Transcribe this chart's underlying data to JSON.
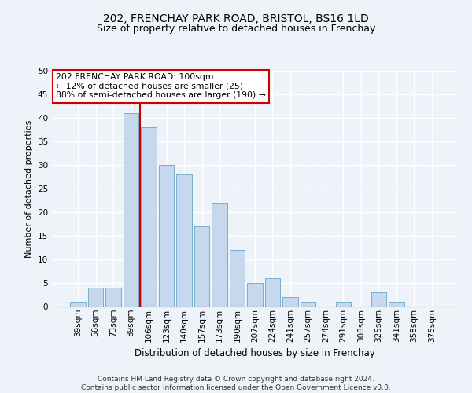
{
  "title1": "202, FRENCHAY PARK ROAD, BRISTOL, BS16 1LD",
  "title2": "Size of property relative to detached houses in Frenchay",
  "xlabel": "Distribution of detached houses by size in Frenchay",
  "ylabel": "Number of detached properties",
  "categories": [
    "39sqm",
    "56sqm",
    "73sqm",
    "89sqm",
    "106sqm",
    "123sqm",
    "140sqm",
    "157sqm",
    "173sqm",
    "190sqm",
    "207sqm",
    "224sqm",
    "241sqm",
    "257sqm",
    "274sqm",
    "291sqm",
    "308sqm",
    "325sqm",
    "341sqm",
    "358sqm",
    "375sqm"
  ],
  "values": [
    1,
    4,
    4,
    41,
    38,
    30,
    28,
    17,
    22,
    12,
    5,
    6,
    2,
    1,
    0,
    1,
    0,
    3,
    1,
    0,
    0
  ],
  "bar_color": "#c5d8ee",
  "bar_edge_color": "#7aaecc",
  "vline_x_index": 3.5,
  "vline_color": "#cc0000",
  "annotation_text": "202 FRENCHAY PARK ROAD: 100sqm\n← 12% of detached houses are smaller (25)\n88% of semi-detached houses are larger (190) →",
  "annotation_box_facecolor": "#ffffff",
  "annotation_box_edgecolor": "#cc0000",
  "ylim": [
    0,
    50
  ],
  "yticks": [
    0,
    5,
    10,
    15,
    20,
    25,
    30,
    35,
    40,
    45,
    50
  ],
  "footnote": "Contains HM Land Registry data © Crown copyright and database right 2024.\nContains public sector information licensed under the Open Government Licence v3.0.",
  "bg_color": "#eef2f9",
  "grid_color": "#ffffff",
  "title1_fontsize": 10,
  "title2_fontsize": 9,
  "xlabel_fontsize": 8.5,
  "ylabel_fontsize": 8,
  "tick_fontsize": 7.5,
  "annotation_fontsize": 7.8,
  "footnote_fontsize": 6.5
}
